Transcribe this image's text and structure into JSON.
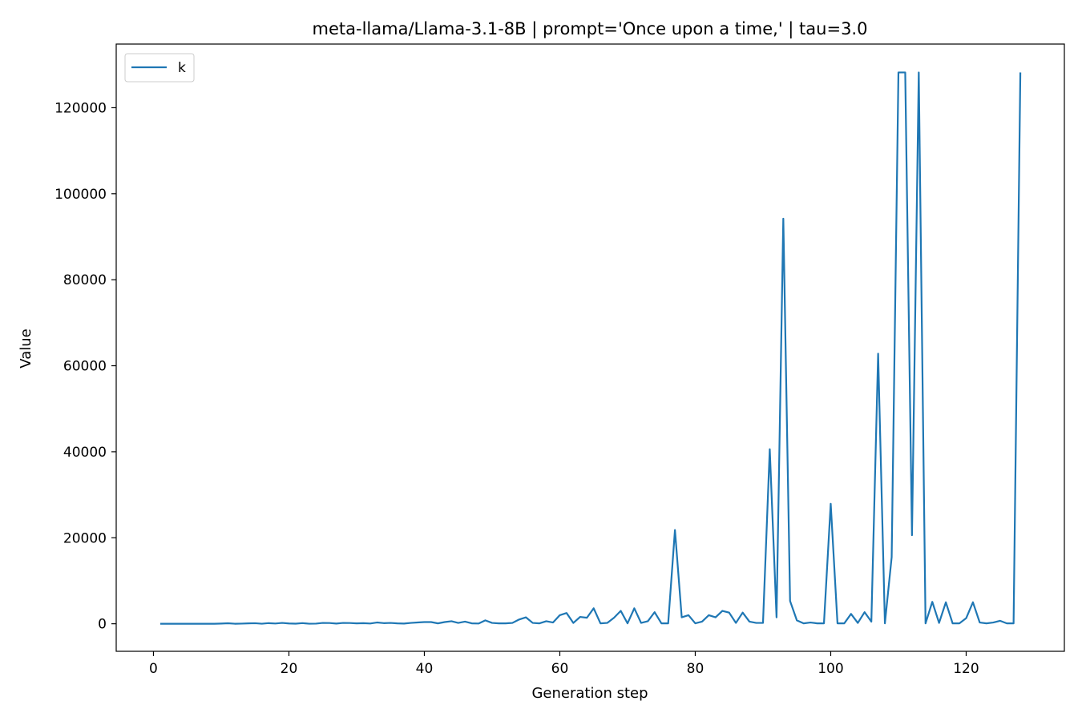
{
  "chart_data": {
    "type": "line",
    "title": "meta-llama/Llama-3.1-8B | prompt='Once upon a time,' | tau=3.0",
    "xlabel": "Generation step",
    "ylabel": "Value",
    "xlim": [
      -5.5,
      134.5
    ],
    "ylim": [
      -6400,
      134800
    ],
    "xticks": [
      0,
      20,
      40,
      60,
      80,
      100,
      120
    ],
    "yticks": [
      0,
      20000,
      40000,
      60000,
      80000,
      100000,
      120000
    ],
    "grid": false,
    "legend_position": "upper-left",
    "series": [
      {
        "name": "k",
        "color": "#1f77b4",
        "x": [
          1,
          2,
          3,
          4,
          5,
          6,
          7,
          8,
          9,
          10,
          11,
          12,
          13,
          14,
          15,
          16,
          17,
          18,
          19,
          20,
          21,
          22,
          23,
          24,
          25,
          26,
          27,
          28,
          29,
          30,
          31,
          32,
          33,
          34,
          35,
          36,
          37,
          38,
          39,
          40,
          41,
          42,
          43,
          44,
          45,
          46,
          47,
          48,
          49,
          50,
          51,
          52,
          53,
          54,
          55,
          56,
          57,
          58,
          59,
          60,
          61,
          62,
          63,
          64,
          65,
          66,
          67,
          68,
          69,
          70,
          71,
          72,
          73,
          74,
          75,
          76,
          77,
          78,
          79,
          80,
          81,
          82,
          83,
          84,
          85,
          86,
          87,
          88,
          89,
          90,
          91,
          92,
          93,
          94,
          95,
          96,
          97,
          98,
          99,
          100,
          101,
          102,
          103,
          104,
          105,
          106,
          107,
          108,
          109,
          110,
          111,
          112,
          113,
          114,
          115,
          116,
          117,
          118,
          119,
          120,
          121,
          122,
          123,
          124,
          125,
          126,
          127,
          128
        ],
        "values": [
          10,
          5,
          3,
          2,
          2,
          4,
          3,
          2,
          1,
          50,
          120,
          10,
          40,
          90,
          130,
          15,
          150,
          60,
          200,
          70,
          30,
          150,
          20,
          40,
          200,
          180,
          50,
          200,
          180,
          100,
          150,
          60,
          300,
          150,
          200,
          100,
          50,
          200,
          300,
          400,
          400,
          100,
          400,
          600,
          200,
          500,
          100,
          60,
          800,
          200,
          100,
          100,
          200,
          1000,
          1500,
          200,
          100,
          600,
          300,
          2000,
          2500,
          200,
          1600,
          1400,
          3600,
          100,
          200,
          1400,
          3000,
          100,
          3600,
          200,
          600,
          2700,
          100,
          100,
          21800,
          1500,
          2000,
          100,
          500,
          2000,
          1500,
          3000,
          2600,
          200,
          2600,
          500,
          200,
          200,
          40600,
          1500,
          94200,
          5300,
          800,
          100,
          300,
          100,
          100,
          27900,
          100,
          100,
          2300,
          200,
          2700,
          500,
          62800,
          100,
          15500,
          128200,
          128200,
          20600,
          128200,
          100,
          5100,
          200,
          5000,
          100,
          100,
          1300,
          5000,
          300,
          100,
          300,
          700,
          100,
          100,
          128200
        ]
      }
    ]
  }
}
